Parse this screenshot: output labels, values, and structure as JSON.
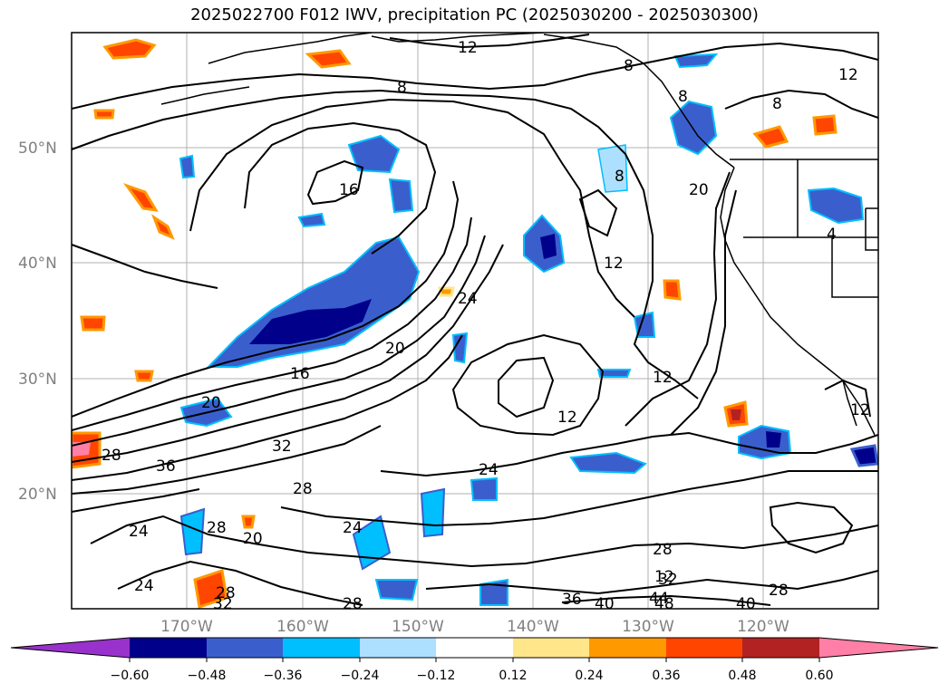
{
  "title": "2025022700 F012 IWV, precipitation PC (2025030200 - 2025030300)",
  "colors": {
    "contour": "#000000",
    "grid": "#b0b0b0",
    "coast": "#000000",
    "neg_strong": "#00008b",
    "neg_mid": "#3a5fcd",
    "neg_light": "#00bfff",
    "pos_light": "#ffe68a",
    "pos_mid": "#ff9900",
    "pos_strong": "#ff4500",
    "pos_dark": "#b22222",
    "pos_pink": "#ff7fa6"
  },
  "axes": {
    "lat_labels": [
      "50°N",
      "40°N",
      "30°N",
      "20°N"
    ],
    "lon_labels": [
      "170°W",
      "160°W",
      "150°W",
      "140°W",
      "130°W",
      "120°W"
    ]
  },
  "colorbar": {
    "levels": [
      "−0.60",
      "−0.48",
      "−0.36",
      "−0.24",
      "−0.12",
      "0.12",
      "0.24",
      "0.36",
      "0.48",
      "0.60"
    ],
    "colors": [
      "#9932cc",
      "#00008b",
      "#3a5fcd",
      "#00bfff",
      "#ade0ff",
      "#ffffff",
      "#ffe68a",
      "#ff9900",
      "#ff4500",
      "#b22222",
      "#ff7fa6"
    ]
  },
  "contour_labels": [
    "12",
    "8",
    "8",
    "12",
    "8",
    "8",
    "16",
    "12",
    "8",
    "20",
    "20",
    "12",
    "24",
    "28",
    "16",
    "20",
    "24",
    "28",
    "32",
    "36",
    "28",
    "24",
    "20",
    "28",
    "24",
    "28",
    "32",
    "36",
    "40",
    "44",
    "48",
    "12",
    "12",
    "24",
    "28",
    "4",
    "32",
    "40",
    "28",
    "12"
  ]
}
